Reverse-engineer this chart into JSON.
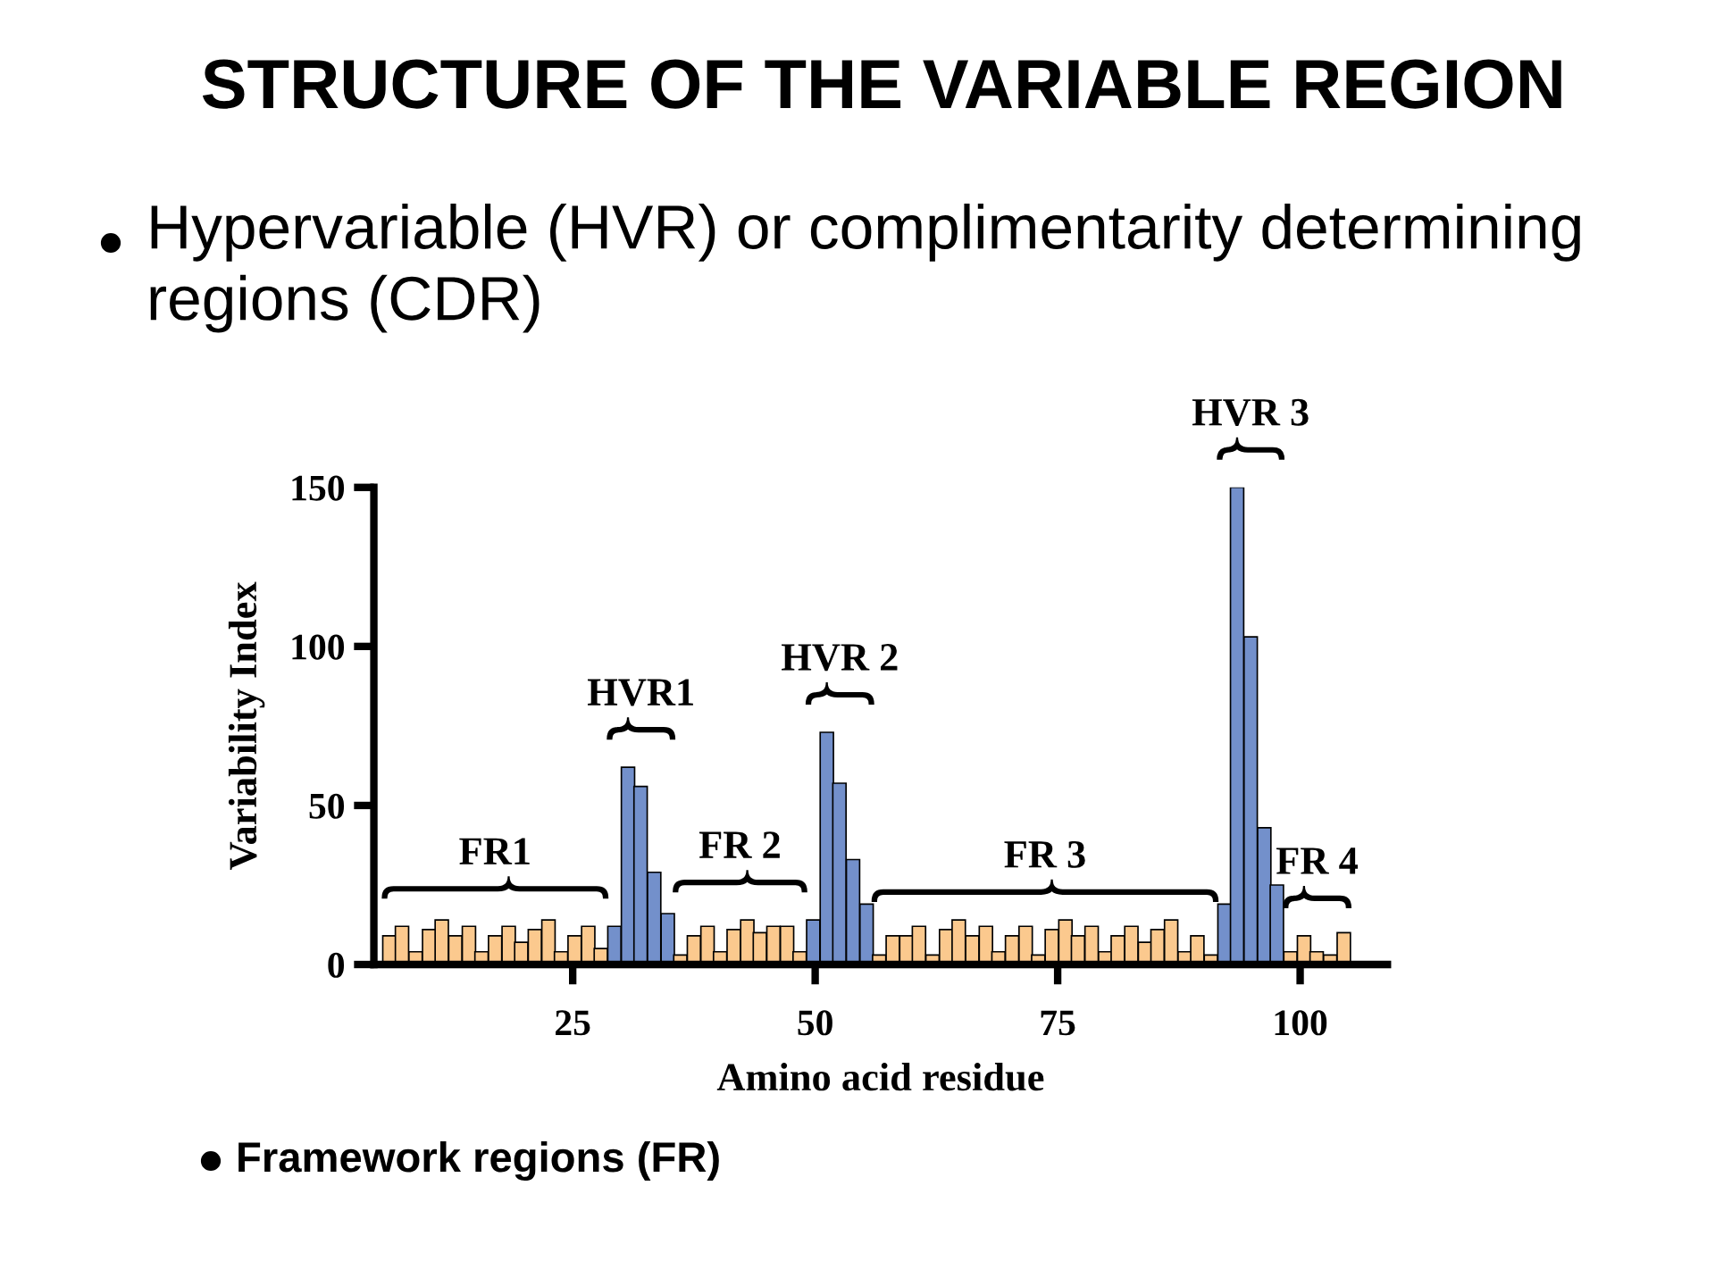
{
  "chart_data": {
    "type": "bar",
    "title": "STRUCTURE OF THE VARIABLE REGION",
    "subtitle": "Hypervariable (HVR) or complimentarity determining regions (CDR)",
    "xlabel": "Amino acid residue",
    "ylabel": "Variability Index",
    "x": [
      6.1,
      7.4,
      8.8,
      10.2,
      11.5,
      12.9,
      14.3,
      15.6,
      17.0,
      18.4,
      19.7,
      21.1,
      22.5,
      23.8,
      25.2,
      26.6,
      27.9,
      29.3,
      30.7,
      32.0,
      33.4,
      34.8,
      36.1,
      37.5,
      38.9,
      40.2,
      41.6,
      43.0,
      44.3,
      45.7,
      47.1,
      48.4,
      49.8,
      51.2,
      52.5,
      53.9,
      55.3,
      56.6,
      58.0,
      59.4,
      60.7,
      62.1,
      63.5,
      64.8,
      66.2,
      67.6,
      68.9,
      70.3,
      71.7,
      73.0,
      74.4,
      75.8,
      77.1,
      78.5,
      79.9,
      81.2,
      82.6,
      84.0,
      85.3,
      86.7,
      88.1,
      89.4,
      90.8,
      92.2,
      93.5,
      94.9,
      96.3,
      97.6,
      99.0,
      100.4,
      101.7,
      103.1,
      104.5
    ],
    "values": [
      9,
      12,
      4,
      11,
      14,
      9,
      12,
      4,
      9,
      12,
      7,
      11,
      14,
      4,
      9,
      12,
      5,
      12,
      62,
      56,
      29,
      16,
      3,
      9,
      12,
      4,
      11,
      14,
      10,
      12,
      12,
      4,
      14,
      73,
      57,
      33,
      19,
      3,
      9,
      9,
      12,
      3,
      11,
      14,
      9,
      12,
      4,
      9,
      12,
      3,
      11,
      14,
      9,
      12,
      4,
      9,
      12,
      7,
      11,
      14,
      4,
      9,
      3,
      19,
      150,
      103,
      43,
      25,
      4,
      9,
      4,
      3,
      10
    ],
    "colors": [
      "#fbc98e",
      "#fbc98e",
      "#fbc98e",
      "#fbc98e",
      "#fbc98e",
      "#fbc98e",
      "#fbc98e",
      "#fbc98e",
      "#fbc98e",
      "#fbc98e",
      "#fbc98e",
      "#fbc98e",
      "#fbc98e",
      "#fbc98e",
      "#fbc98e",
      "#fbc98e",
      "#fbc98e",
      "#7390cb",
      "#7390cb",
      "#7390cb",
      "#7390cb",
      "#7390cb",
      "#fbc98e",
      "#fbc98e",
      "#fbc98e",
      "#fbc98e",
      "#fbc98e",
      "#fbc98e",
      "#fbc98e",
      "#fbc98e",
      "#fbc98e",
      "#fbc98e",
      "#7390cb",
      "#7390cb",
      "#7390cb",
      "#7390cb",
      "#7390cb",
      "#fbc98e",
      "#fbc98e",
      "#fbc98e",
      "#fbc98e",
      "#fbc98e",
      "#fbc98e",
      "#fbc98e",
      "#fbc98e",
      "#fbc98e",
      "#fbc98e",
      "#fbc98e",
      "#fbc98e",
      "#fbc98e",
      "#fbc98e",
      "#fbc98e",
      "#fbc98e",
      "#fbc98e",
      "#fbc98e",
      "#fbc98e",
      "#fbc98e",
      "#fbc98e",
      "#fbc98e",
      "#fbc98e",
      "#fbc98e",
      "#fbc98e",
      "#fbc98e",
      "#7390cb",
      "#7390cb",
      "#7390cb",
      "#7390cb",
      "#7390cb",
      "#fbc98e",
      "#fbc98e",
      "#fbc98e",
      "#fbc98e",
      "#fbc98e"
    ],
    "xlim": [
      4.5,
      109
    ],
    "ylim": [
      0,
      150
    ],
    "xticks": [
      25,
      50,
      75,
      100
    ],
    "yticks": [
      0,
      50,
      100,
      150
    ],
    "annotations": [
      {
        "text": "FR1",
        "x": 18.4,
        "y": 12
      },
      {
        "text": "HVR1",
        "x": 30.7,
        "y": 62
      },
      {
        "text": "FR 2",
        "x": 43.0,
        "y": 14
      },
      {
        "text": "HVR 2",
        "x": 51.2,
        "y": 73
      },
      {
        "text": "FR 3",
        "x": 74.4,
        "y": 11
      },
      {
        "text": "HVR 3",
        "x": 93.5,
        "y": 150
      },
      {
        "text": "FR 4",
        "x": 100.4,
        "y": 9
      },
      "Framework regions (FR)"
    ]
  }
}
